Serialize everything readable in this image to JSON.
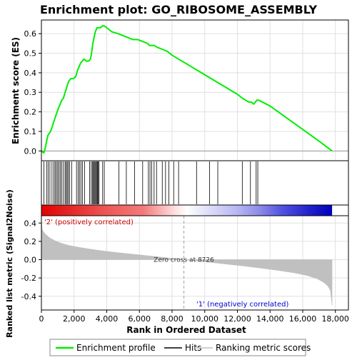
{
  "chart_data": [
    {
      "type": "line",
      "title": "Enrichment plot: GO_RIBOSOME_ASSEMBLY",
      "ylabel": "Enrichment score (ES)",
      "ylim": [
        -0.05,
        0.67
      ],
      "xlim": [
        0,
        18800
      ],
      "yticks": [
        0.0,
        0.1,
        0.2,
        0.3,
        0.4,
        0.5,
        0.6
      ],
      "ytick_labels": [
        "0.0",
        "0.1",
        "0.2",
        "0.3",
        "0.4",
        "0.5",
        "0.6"
      ],
      "grid": true,
      "series": [
        {
          "name": "Enrichment profile",
          "color": "#00ee00",
          "x": [
            0,
            150,
            250,
            320,
            400,
            480,
            560,
            650,
            720,
            800,
            880,
            960,
            1050,
            1150,
            1250,
            1350,
            1450,
            1530,
            1600,
            1700,
            1800,
            1950,
            2100,
            2200,
            2300,
            2400,
            2500,
            2600,
            2750,
            2900,
            3000,
            3050,
            3100,
            3150,
            3200,
            3250,
            3300,
            3350,
            3400,
            3450,
            3500,
            3600,
            3750,
            3850,
            4000,
            4300,
            4700,
            5000,
            5300,
            5600,
            5900,
            6200,
            6500,
            6600,
            6700,
            6900,
            7100,
            7400,
            7700,
            8000,
            8400,
            8800,
            9200,
            9600,
            10000,
            10400,
            10800,
            11200,
            11600,
            12000,
            12300,
            12500,
            12700,
            12850,
            13000,
            13100,
            13200,
            13300,
            14000,
            15000,
            16000,
            17000,
            17800
          ],
          "y": [
            0.0,
            -0.01,
            0.02,
            0.05,
            0.08,
            0.09,
            0.1,
            0.12,
            0.14,
            0.16,
            0.18,
            0.2,
            0.22,
            0.24,
            0.26,
            0.27,
            0.3,
            0.32,
            0.34,
            0.36,
            0.37,
            0.37,
            0.38,
            0.41,
            0.43,
            0.45,
            0.46,
            0.47,
            0.46,
            0.46,
            0.47,
            0.49,
            0.52,
            0.55,
            0.57,
            0.59,
            0.61,
            0.62,
            0.63,
            0.63,
            0.63,
            0.63,
            0.64,
            0.64,
            0.63,
            0.61,
            0.6,
            0.59,
            0.58,
            0.57,
            0.57,
            0.56,
            0.55,
            0.54,
            0.54,
            0.54,
            0.53,
            0.52,
            0.51,
            0.49,
            0.47,
            0.45,
            0.43,
            0.41,
            0.39,
            0.37,
            0.35,
            0.33,
            0.31,
            0.29,
            0.27,
            0.26,
            0.25,
            0.25,
            0.24,
            0.25,
            0.26,
            0.26,
            0.23,
            0.17,
            0.11,
            0.05,
            0.0
          ]
        }
      ]
    },
    {
      "type": "heatmap",
      "series": [
        {
          "name": "Hits",
          "color": "#000000",
          "x": [
            150,
            320,
            420,
            520,
            650,
            760,
            840,
            920,
            1000,
            1080,
            1160,
            1250,
            1350,
            1450,
            1520,
            1580,
            1650,
            1720,
            1850,
            2150,
            2250,
            2330,
            2420,
            2520,
            2650,
            2950,
            3050,
            3120,
            3180,
            3230,
            3280,
            3330,
            3380,
            3430,
            3480,
            3530,
            3750,
            3850,
            4750,
            5200,
            5700,
            6200,
            6550,
            6650,
            6750,
            6900,
            7050,
            7400,
            7600,
            7800,
            8100,
            8400,
            9500,
            10300,
            10800,
            12300,
            12800,
            13150,
            13250
          ]
        }
      ],
      "gradient": {
        "stops": [
          {
            "pos": 0.0,
            "color": "#e60000"
          },
          {
            "pos": 0.08,
            "color": "#e22020"
          },
          {
            "pos": 0.22,
            "color": "#ee5555"
          },
          {
            "pos": 0.35,
            "color": "#f27a7a"
          },
          {
            "pos": 0.4,
            "color": "#f8a8a8"
          },
          {
            "pos": 0.46,
            "color": "#fde0e0"
          },
          {
            "pos": 0.5,
            "color": "#ffffff"
          },
          {
            "pos": 0.56,
            "color": "#e4e4fa"
          },
          {
            "pos": 0.67,
            "color": "#b8b8f4"
          },
          {
            "pos": 0.75,
            "color": "#8c8ce8"
          },
          {
            "pos": 0.83,
            "color": "#5050e0"
          },
          {
            "pos": 0.92,
            "color": "#2222cc"
          },
          {
            "pos": 1.0,
            "color": "#0000bb"
          }
        ]
      }
    },
    {
      "type": "area",
      "xlabel": "Rank in Ordered Dataset",
      "ylabel": "Ranked list metric (Signal2Noise)",
      "ylim": [
        -0.55,
        0.48
      ],
      "xlim": [
        0,
        18800
      ],
      "yticks": [
        -0.4,
        -0.2,
        0.0,
        0.2,
        0.4
      ],
      "ytick_labels": [
        "-0.4",
        "-0.2",
        "0.0",
        "0.2",
        "0.4"
      ],
      "xticks": [
        0,
        2000,
        4000,
        6000,
        8000,
        10000,
        12000,
        14000,
        16000,
        18000
      ],
      "xtick_labels": [
        "0",
        "2,000",
        "4,000",
        "6,000",
        "8,000",
        "10,000",
        "12,000",
        "14,000",
        "16,000",
        "18,000"
      ],
      "grid": true,
      "series": [
        {
          "name": "Ranking metric scores",
          "color": "#c0c0c0",
          "x": [
            0,
            50,
            150,
            300,
            500,
            800,
            1200,
            1700,
            2300,
            3000,
            3800,
            4600,
            5500,
            6400,
            7300,
            8000,
            8726,
            9500,
            10500,
            11500,
            12500,
            13500,
            14500,
            15500,
            16300,
            16900,
            17300,
            17550,
            17700,
            17800
          ],
          "y": [
            0.45,
            0.33,
            0.3,
            0.27,
            0.24,
            0.21,
            0.18,
            0.155,
            0.135,
            0.115,
            0.095,
            0.078,
            0.062,
            0.045,
            0.028,
            0.013,
            0.0,
            -0.015,
            -0.033,
            -0.052,
            -0.072,
            -0.094,
            -0.118,
            -0.145,
            -0.175,
            -0.21,
            -0.25,
            -0.29,
            -0.34,
            -0.5
          ]
        }
      ],
      "annotations": {
        "zero_cross": "Zero cross at 8726",
        "zero_cross_x": 8726,
        "positive_label": "'2' (positively correlated)",
        "negative_label": "'1' (negatively correlated)",
        "positive_color": "#cc0000",
        "negative_color": "#0000cc"
      }
    }
  ],
  "legend": {
    "items": [
      {
        "label": "Enrichment profile",
        "color": "#00ee00"
      },
      {
        "label": "Hits",
        "color": "#000000"
      },
      {
        "label": "Ranking metric scores",
        "color": "#c0c0c0"
      }
    ]
  }
}
